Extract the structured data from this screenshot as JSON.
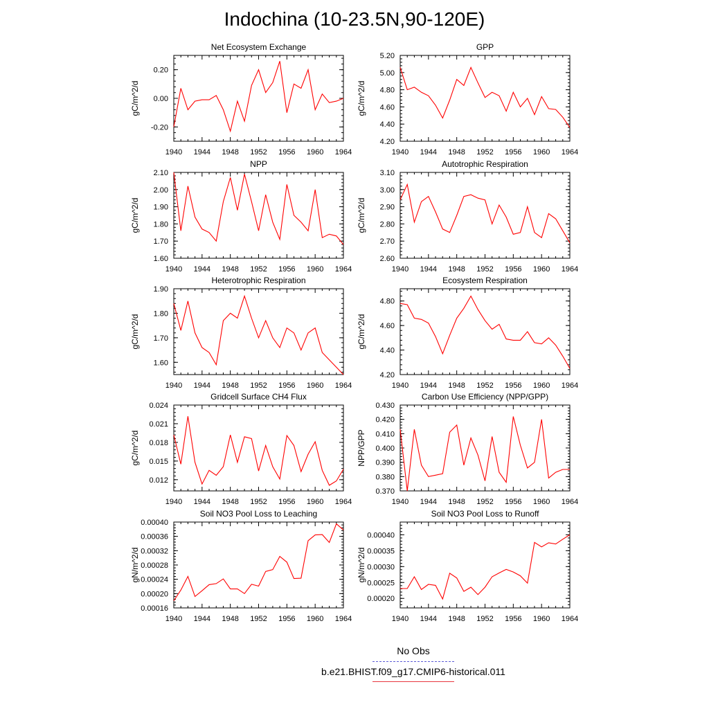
{
  "title": "Indochina (10-23.5N,90-120E)",
  "legend": [
    {
      "label": "No Obs",
      "color": "#5b5bd6",
      "style": "dashed"
    },
    {
      "label": "b.e21.BHIST.f09_g17.CMIP6-historical.011",
      "color": "#e8353e",
      "style": "solid"
    }
  ],
  "chart_data": [
    {
      "type": "line",
      "title": "Net Ecosystem Exchange",
      "ylabel": "gC/m^2/d",
      "xlim": [
        1940,
        1964
      ],
      "ylim": [
        -0.3,
        0.3
      ],
      "xticks": [
        1940,
        1944,
        1948,
        1952,
        1956,
        1960,
        1964
      ],
      "xtick_labels": [
        "1940",
        "1944",
        "1948",
        "1952",
        "1956",
        "1960",
        "1964"
      ],
      "yticks": [
        -0.2,
        0.0,
        0.2
      ],
      "ytick_labels": [
        "-0.20",
        "0.00",
        "0.20"
      ],
      "color": "#ff0000",
      "x": [
        1940,
        1941,
        1942,
        1943,
        1944,
        1945,
        1946,
        1947,
        1948,
        1949,
        1950,
        1951,
        1952,
        1953,
        1954,
        1955,
        1956,
        1957,
        1958,
        1959,
        1960,
        1961,
        1962,
        1963,
        1964
      ],
      "values": [
        -0.2,
        0.07,
        -0.08,
        -0.02,
        -0.01,
        -0.01,
        0.02,
        -0.08,
        -0.23,
        -0.02,
        -0.16,
        0.09,
        0.2,
        0.04,
        0.11,
        0.26,
        -0.1,
        0.1,
        0.07,
        0.2,
        -0.08,
        0.03,
        -0.03,
        -0.02,
        0.0
      ]
    },
    {
      "type": "line",
      "title": "GPP",
      "ylabel": "gC/m^2/d",
      "xlim": [
        1940,
        1964
      ],
      "ylim": [
        4.2,
        5.2
      ],
      "xticks": [
        1940,
        1944,
        1948,
        1952,
        1956,
        1960,
        1964
      ],
      "xtick_labels": [
        "1940",
        "1944",
        "1948",
        "1952",
        "1956",
        "1960",
        "1964"
      ],
      "yticks": [
        4.2,
        4.4,
        4.6,
        4.8,
        5.0,
        5.2
      ],
      "ytick_labels": [
        "4.20",
        "4.40",
        "4.60",
        "4.80",
        "5.00",
        "5.20"
      ],
      "color": "#ff0000",
      "x": [
        1940,
        1941,
        1942,
        1943,
        1944,
        1945,
        1946,
        1947,
        1948,
        1949,
        1950,
        1951,
        1952,
        1953,
        1954,
        1955,
        1956,
        1957,
        1958,
        1959,
        1960,
        1961,
        1962,
        1963,
        1964
      ],
      "values": [
        5.06,
        4.8,
        4.83,
        4.77,
        4.73,
        4.62,
        4.47,
        4.68,
        4.92,
        4.85,
        5.06,
        4.88,
        4.71,
        4.77,
        4.73,
        4.55,
        4.77,
        4.6,
        4.7,
        4.51,
        4.72,
        4.58,
        4.57,
        4.48,
        4.36
      ]
    },
    {
      "type": "line",
      "title": "NPP",
      "ylabel": "gC/m^2/d",
      "xlim": [
        1940,
        1964
      ],
      "ylim": [
        1.6,
        2.1
      ],
      "xticks": [
        1940,
        1944,
        1948,
        1952,
        1956,
        1960,
        1964
      ],
      "xtick_labels": [
        "1940",
        "1944",
        "1948",
        "1952",
        "1956",
        "1960",
        "1964"
      ],
      "yticks": [
        1.6,
        1.7,
        1.8,
        1.9,
        2.0,
        2.1
      ],
      "ytick_labels": [
        "1.60",
        "1.70",
        "1.80",
        "1.90",
        "2.00",
        "2.10"
      ],
      "color": "#ff0000",
      "x": [
        1940,
        1941,
        1942,
        1943,
        1944,
        1945,
        1946,
        1947,
        1948,
        1949,
        1950,
        1951,
        1952,
        1953,
        1954,
        1955,
        1956,
        1957,
        1958,
        1959,
        1960,
        1961,
        1962,
        1963,
        1964
      ],
      "values": [
        2.1,
        1.76,
        2.02,
        1.84,
        1.77,
        1.75,
        1.7,
        1.93,
        2.07,
        1.88,
        2.09,
        1.93,
        1.76,
        1.97,
        1.81,
        1.71,
        2.03,
        1.85,
        1.81,
        1.76,
        2.0,
        1.72,
        1.74,
        1.73,
        1.68
      ]
    },
    {
      "type": "line",
      "title": "Autotrophic Respiration",
      "ylabel": "gC/m^2/d",
      "xlim": [
        1940,
        1964
      ],
      "ylim": [
        2.6,
        3.1
      ],
      "xticks": [
        1940,
        1944,
        1948,
        1952,
        1956,
        1960,
        1964
      ],
      "xtick_labels": [
        "1940",
        "1944",
        "1948",
        "1952",
        "1956",
        "1960",
        "1964"
      ],
      "yticks": [
        2.6,
        2.7,
        2.8,
        2.9,
        3.0,
        3.1
      ],
      "ytick_labels": [
        "2.60",
        "2.70",
        "2.80",
        "2.90",
        "3.00",
        "3.10"
      ],
      "color": "#ff0000",
      "x": [
        1940,
        1941,
        1942,
        1943,
        1944,
        1945,
        1946,
        1947,
        1948,
        1949,
        1950,
        1951,
        1952,
        1953,
        1954,
        1955,
        1956,
        1957,
        1958,
        1959,
        1960,
        1961,
        1962,
        1963,
        1964
      ],
      "values": [
        2.94,
        3.03,
        2.81,
        2.93,
        2.96,
        2.87,
        2.77,
        2.75,
        2.85,
        2.96,
        2.97,
        2.95,
        2.94,
        2.8,
        2.91,
        2.84,
        2.74,
        2.75,
        2.9,
        2.75,
        2.72,
        2.86,
        2.83,
        2.76,
        2.69
      ]
    },
    {
      "type": "line",
      "title": "Heterotrophic Respiration",
      "ylabel": "gC/m^2/d",
      "xlim": [
        1940,
        1964
      ],
      "ylim": [
        1.55,
        1.9
      ],
      "xticks": [
        1940,
        1944,
        1948,
        1952,
        1956,
        1960,
        1964
      ],
      "xtick_labels": [
        "1940",
        "1944",
        "1948",
        "1952",
        "1956",
        "1960",
        "1964"
      ],
      "yticks": [
        1.6,
        1.7,
        1.8,
        1.9
      ],
      "ytick_labels": [
        "1.60",
        "1.70",
        "1.80",
        "1.90"
      ],
      "color": "#ff0000",
      "x": [
        1940,
        1941,
        1942,
        1943,
        1944,
        1945,
        1946,
        1947,
        1948,
        1949,
        1950,
        1951,
        1952,
        1953,
        1954,
        1955,
        1956,
        1957,
        1958,
        1959,
        1960,
        1961,
        1962,
        1963,
        1964
      ],
      "values": [
        1.84,
        1.73,
        1.85,
        1.72,
        1.66,
        1.64,
        1.59,
        1.77,
        1.8,
        1.78,
        1.87,
        1.78,
        1.7,
        1.77,
        1.7,
        1.66,
        1.74,
        1.72,
        1.65,
        1.72,
        1.74,
        1.64,
        1.61,
        1.58,
        1.55
      ]
    },
    {
      "type": "line",
      "title": "Ecosystem Respiration",
      "ylabel": "gC/m^2/d",
      "xlim": [
        1940,
        1964
      ],
      "ylim": [
        4.2,
        4.9
      ],
      "xticks": [
        1940,
        1944,
        1948,
        1952,
        1956,
        1960,
        1964
      ],
      "xtick_labels": [
        "1940",
        "1944",
        "1948",
        "1952",
        "1956",
        "1960",
        "1964"
      ],
      "yticks": [
        4.2,
        4.4,
        4.6,
        4.8
      ],
      "ytick_labels": [
        "4.20",
        "4.40",
        "4.60",
        "4.80"
      ],
      "color": "#ff0000",
      "x": [
        1940,
        1941,
        1942,
        1943,
        1944,
        1945,
        1946,
        1947,
        1948,
        1949,
        1950,
        1951,
        1952,
        1953,
        1954,
        1955,
        1956,
        1957,
        1958,
        1959,
        1960,
        1961,
        1962,
        1963,
        1964
      ],
      "values": [
        4.78,
        4.77,
        4.66,
        4.65,
        4.62,
        4.51,
        4.37,
        4.52,
        4.66,
        4.74,
        4.84,
        4.73,
        4.64,
        4.57,
        4.61,
        4.49,
        4.48,
        4.48,
        4.55,
        4.46,
        4.45,
        4.5,
        4.44,
        4.35,
        4.25
      ]
    },
    {
      "type": "line",
      "title": "Gridcell Surface CH4 Flux",
      "ylabel": "gC/m^2/d",
      "xlim": [
        1940,
        1964
      ],
      "ylim": [
        0.0102,
        0.024
      ],
      "xticks": [
        1940,
        1944,
        1948,
        1952,
        1956,
        1960,
        1964
      ],
      "xtick_labels": [
        "1940",
        "1944",
        "1948",
        "1952",
        "1956",
        "1960",
        "1964"
      ],
      "yticks": [
        0.012,
        0.015,
        0.018,
        0.021,
        0.024
      ],
      "ytick_labels": [
        "0.012",
        "0.015",
        "0.018",
        "0.021",
        "0.024"
      ],
      "color": "#ff0000",
      "x": [
        1940,
        1941,
        1942,
        1943,
        1944,
        1945,
        1946,
        1947,
        1948,
        1949,
        1950,
        1951,
        1952,
        1953,
        1954,
        1955,
        1956,
        1957,
        1958,
        1959,
        1960,
        1961,
        1962,
        1963,
        1964
      ],
      "values": [
        0.0192,
        0.0145,
        0.0222,
        0.0148,
        0.0113,
        0.0135,
        0.0127,
        0.0141,
        0.0192,
        0.0148,
        0.0189,
        0.0186,
        0.0134,
        0.0175,
        0.0141,
        0.0121,
        0.0191,
        0.0175,
        0.0133,
        0.0161,
        0.0181,
        0.0135,
        0.0111,
        0.0118,
        0.0137
      ]
    },
    {
      "type": "line",
      "title": "Carbon Use Efficiency (NPP/GPP)",
      "ylabel": "NPP/GPP",
      "xlim": [
        1940,
        1964
      ],
      "ylim": [
        0.37,
        0.43
      ],
      "xticks": [
        1940,
        1944,
        1948,
        1952,
        1956,
        1960,
        1964
      ],
      "xtick_labels": [
        "1940",
        "1944",
        "1948",
        "1952",
        "1956",
        "1960",
        "1964"
      ],
      "yticks": [
        0.37,
        0.38,
        0.39,
        0.4,
        0.41,
        0.42,
        0.43
      ],
      "ytick_labels": [
        "0.370",
        "0.380",
        "0.390",
        "0.400",
        "0.410",
        "0.420",
        "0.430"
      ],
      "color": "#ff0000",
      "x": [
        1940,
        1941,
        1942,
        1943,
        1944,
        1945,
        1946,
        1947,
        1948,
        1949,
        1950,
        1951,
        1952,
        1953,
        1954,
        1955,
        1956,
        1957,
        1958,
        1959,
        1960,
        1961,
        1962,
        1963,
        1964
      ],
      "values": [
        0.413,
        0.37,
        0.413,
        0.388,
        0.38,
        0.381,
        0.382,
        0.411,
        0.416,
        0.388,
        0.407,
        0.395,
        0.377,
        0.408,
        0.383,
        0.376,
        0.422,
        0.402,
        0.386,
        0.39,
        0.42,
        0.379,
        0.383,
        0.385,
        0.385
      ]
    },
    {
      "type": "line",
      "title": "Soil NO3 Pool Loss to Leaching",
      "ylabel": "gN/m^2/d",
      "xlim": [
        1940,
        1964
      ],
      "ylim": [
        0.00016,
        0.0004
      ],
      "xticks": [
        1940,
        1944,
        1948,
        1952,
        1956,
        1960,
        1964
      ],
      "xtick_labels": [
        "1940",
        "1944",
        "1948",
        "1952",
        "1956",
        "1960",
        "1964"
      ],
      "yticks": [
        0.00016,
        0.0002,
        0.00024,
        0.00028,
        0.00032,
        0.00036,
        0.0004
      ],
      "ytick_labels": [
        "0.00016",
        "0.00020",
        "0.00024",
        "0.00028",
        "0.00032",
        "0.00036",
        "0.00040"
      ],
      "color": "#ff0000",
      "x": [
        1940,
        1941,
        1942,
        1943,
        1944,
        1945,
        1946,
        1947,
        1948,
        1949,
        1950,
        1951,
        1952,
        1953,
        1954,
        1955,
        1956,
        1957,
        1958,
        1959,
        1960,
        1961,
        1962,
        1963,
        1964
      ],
      "values": [
        0.00018,
        0.00021,
        0.000248,
        0.000192,
        0.000208,
        0.000225,
        0.000228,
        0.000241,
        0.000213,
        0.000213,
        0.0002,
        0.000226,
        0.000221,
        0.000262,
        0.000267,
        0.000304,
        0.000288,
        0.000242,
        0.000243,
        0.000348,
        0.000364,
        0.000365,
        0.000343,
        0.000395,
        0.000378
      ]
    },
    {
      "type": "line",
      "title": "Soil NO3 Pool Loss to Runoff",
      "ylabel": "gN/m^2/d",
      "xlim": [
        1940,
        1964
      ],
      "ylim": [
        0.00017,
        0.00044
      ],
      "xticks": [
        1940,
        1944,
        1948,
        1952,
        1956,
        1960,
        1964
      ],
      "xtick_labels": [
        "1940",
        "1944",
        "1948",
        "1952",
        "1956",
        "1960",
        "1964"
      ],
      "yticks": [
        0.0002,
        0.00025,
        0.0003,
        0.00035,
        0.0004
      ],
      "ytick_labels": [
        "0.00020",
        "0.00025",
        "0.00030",
        "0.00035",
        "0.00040"
      ],
      "color": "#ff0000",
      "x": [
        1940,
        1941,
        1942,
        1943,
        1944,
        1945,
        1946,
        1947,
        1948,
        1949,
        1950,
        1951,
        1952,
        1953,
        1954,
        1955,
        1956,
        1957,
        1958,
        1959,
        1960,
        1961,
        1962,
        1963,
        1964
      ],
      "values": [
        0.000231,
        0.000231,
        0.000268,
        0.000228,
        0.000244,
        0.000241,
        0.000198,
        0.000279,
        0.000264,
        0.000222,
        0.000235,
        0.000212,
        0.000235,
        0.000268,
        0.00028,
        0.000291,
        0.000283,
        0.000271,
        0.000248,
        0.000376,
        0.000362,
        0.000375,
        0.000371,
        0.000386,
        0.0004
      ]
    }
  ]
}
